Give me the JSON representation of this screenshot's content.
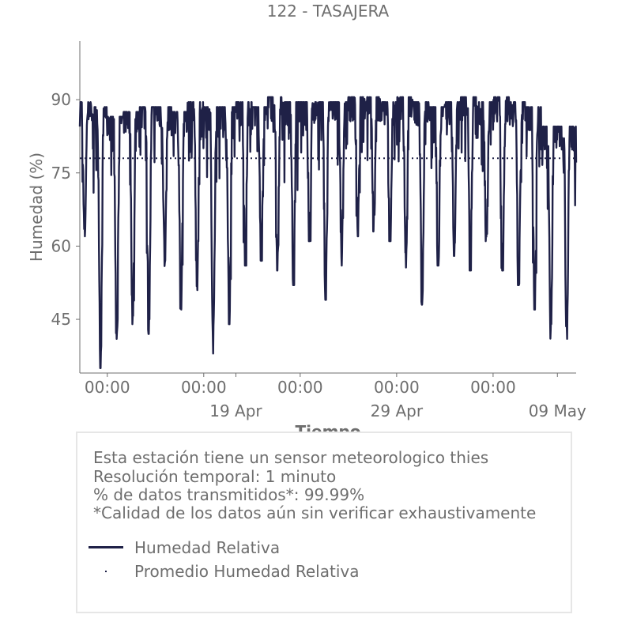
{
  "chart_data": {
    "type": "line",
    "title": "122 - TASAJERA",
    "xlabel": "Tiempo",
    "ylabel": "Humedad (%)",
    "xlim": [
      "2024-04-09 07:00",
      "2024-05-10 04:00"
    ],
    "ylim": [
      34,
      102
    ],
    "y_ticks": [
      45,
      60,
      75,
      90
    ],
    "x_ticks": [
      {
        "at": "2024-04-11 00:00",
        "line1": "00:00",
        "line2": ""
      },
      {
        "at": "2024-04-17 00:00",
        "line1": "00:00",
        "line2": ""
      },
      {
        "at": "2024-04-19 00:00",
        "line1": "",
        "line2": "19 Apr"
      },
      {
        "at": "2024-04-23 00:00",
        "line1": "00:00",
        "line2": ""
      },
      {
        "at": "2024-04-29 00:00",
        "line1": "00:00",
        "line2": "29 Apr"
      },
      {
        "at": "2024-05-05 00:00",
        "line1": "00:00",
        "line2": ""
      },
      {
        "at": "2024-05-09 00:00",
        "line1": "",
        "line2": "09 May"
      }
    ],
    "grid": false,
    "series": [
      {
        "name": "Humedad Relativa",
        "color": "#1f2147",
        "style": "solid",
        "daily_min": [
          62,
          35,
          41,
          44,
          42,
          55,
          47,
          50,
          38,
          44,
          56,
          57,
          55,
          52,
          61,
          49,
          56,
          62,
          63,
          61,
          55,
          48,
          56,
          58,
          55,
          61,
          55,
          52,
          47,
          41
        ],
        "daily_max": [
          89,
          88,
          86,
          87,
          88,
          88,
          87,
          89,
          88,
          88,
          89,
          88,
          90,
          89,
          89,
          89,
          89,
          90,
          90,
          89,
          90,
          89,
          88,
          89,
          90,
          89,
          90,
          89,
          88,
          84
        ]
      },
      {
        "name": "Promedio Humedad Relativa",
        "color": "#1f2147",
        "style": "dotted",
        "value": 78
      }
    ]
  },
  "info": {
    "lines": [
      "Esta estación tiene un sensor meteorologico thies",
      "Resolución temporal: 1 minuto",
      "% de datos transmitidos*: 99.99%",
      "*Calidad de los datos aún sin verificar exhaustivamente"
    ]
  },
  "legend": {
    "items": [
      {
        "label": "Humedad Relativa",
        "marker": "line"
      },
      {
        "label": "Promedio Humedad Relativa",
        "marker": "dot"
      }
    ]
  }
}
